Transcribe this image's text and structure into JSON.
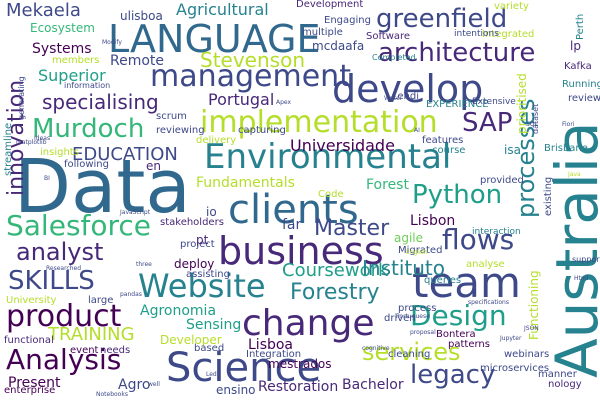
{
  "colors": {
    "background": "#ffffff",
    "palette": [
      "#440154",
      "#482878",
      "#3e4989",
      "#31688e",
      "#26828e",
      "#1f9e89",
      "#35b779",
      "#6ece58",
      "#b5de2b",
      "#fde725"
    ]
  },
  "words": [
    {
      "text": "Data",
      "color": "#31688e"
    },
    {
      "text": "Australia",
      "color": "#26828e"
    },
    {
      "text": "LANGUAGE",
      "color": "#31688e"
    },
    {
      "text": "management",
      "color": "#3e4989"
    },
    {
      "text": "develop",
      "color": "#3e4989"
    },
    {
      "text": "Environmental",
      "color": "#26828e"
    },
    {
      "text": "clients",
      "color": "#31688e"
    },
    {
      "text": "business",
      "color": "#482878"
    },
    {
      "text": "Science",
      "color": "#3e4989"
    },
    {
      "text": "team",
      "color": "#3e4989"
    },
    {
      "text": "Website",
      "color": "#26828e"
    },
    {
      "text": "change",
      "color": "#482878"
    },
    {
      "text": "architecture",
      "color": "#482878"
    },
    {
      "text": "greenfield",
      "color": "#3e4989"
    },
    {
      "text": "implementation",
      "color": "#b5de2b"
    },
    {
      "text": "Salesforce",
      "color": "#35b779"
    },
    {
      "text": "analyst",
      "color": "#482878"
    },
    {
      "text": "Python",
      "color": "#1f9e89"
    },
    {
      "text": "processes",
      "color": "#26828e"
    },
    {
      "text": "flows",
      "color": "#3e4989"
    },
    {
      "text": "product",
      "color": "#440154"
    },
    {
      "text": "Analysis",
      "color": "#440154"
    },
    {
      "text": "SKILLS",
      "color": "#3e4989"
    },
    {
      "text": "Design",
      "color": "#1f9e89"
    },
    {
      "text": "legacy",
      "color": "#3e4989"
    },
    {
      "text": "services",
      "color": "#b5de2b"
    },
    {
      "text": "Murdoch",
      "color": "#35b779"
    },
    {
      "text": "innovation",
      "color": "#482878"
    },
    {
      "text": "SAP",
      "color": "#482878"
    },
    {
      "text": "Stevenson",
      "color": "#b5de2b"
    },
    {
      "text": "specialising",
      "color": "#482878"
    },
    {
      "text": "Master",
      "color": "#3e4989"
    },
    {
      "text": "Forestry",
      "color": "#26828e"
    },
    {
      "text": "Coursework",
      "color": "#1f9e89"
    },
    {
      "text": "Instituto",
      "color": "#26828e"
    },
    {
      "text": "EDUCATION",
      "color": "#3e4989"
    },
    {
      "text": "Universidade",
      "color": "#440154"
    },
    {
      "text": "Mekaela",
      "color": "#3e4989"
    },
    {
      "text": "Agricultural",
      "color": "#26828e"
    },
    {
      "text": "Superior",
      "color": "#1f9e89"
    },
    {
      "text": "Systems",
      "color": "#440154"
    },
    {
      "text": "Remote",
      "color": "#3e4989"
    },
    {
      "text": "Portugal",
      "color": "#482878"
    },
    {
      "text": "TRAINING",
      "color": "#b5de2b"
    },
    {
      "text": "Agronomia",
      "color": "#1f9e89"
    },
    {
      "text": "Sensing",
      "color": "#1f9e89"
    },
    {
      "text": "Lisboa",
      "color": "#440154"
    },
    {
      "text": "Restoration",
      "color": "#482878"
    },
    {
      "text": "Bachelor",
      "color": "#482878"
    },
    {
      "text": "Fundamentals",
      "color": "#b5de2b"
    },
    {
      "text": "Forest",
      "color": "#35b779"
    },
    {
      "text": "Lisbon",
      "color": "#440154"
    },
    {
      "text": "Ecosystem",
      "color": "#35b779"
    },
    {
      "text": "Present",
      "color": "#440154"
    },
    {
      "text": "Agro",
      "color": "#3e4989"
    },
    {
      "text": "mestrados",
      "color": "#440154"
    },
    {
      "text": "ensino",
      "color": "#3e4989"
    },
    {
      "text": "ulisboa",
      "color": "#3e4989"
    },
    {
      "text": "mcdaafa",
      "color": "#3e4989"
    },
    {
      "text": "Development",
      "color": "#482878"
    },
    {
      "text": "Engaging",
      "color": "#3e4989"
    },
    {
      "text": "multiple",
      "color": "#3e4989"
    },
    {
      "text": "Software",
      "color": "#482878"
    },
    {
      "text": "Integrated",
      "color": "#b5de2b"
    },
    {
      "text": "Perth",
      "color": "#26828e"
    },
    {
      "text": "Kafka",
      "color": "#482878"
    },
    {
      "text": "lp",
      "color": "#482878"
    },
    {
      "text": "Lendi",
      "color": "#3e4989"
    },
    {
      "text": "EXPERIENCE",
      "color": "#26828e"
    },
    {
      "text": "Running",
      "color": "#26828e"
    },
    {
      "text": "review",
      "color": "#3e4989"
    },
    {
      "text": "Extensive",
      "color": "#3e4989"
    },
    {
      "text": "isa",
      "color": "#26828e"
    },
    {
      "text": "Brisbane",
      "color": "#26828e"
    },
    {
      "text": "existing",
      "color": "#3e4989"
    },
    {
      "text": "course",
      "color": "#26828e"
    },
    {
      "text": "features",
      "color": "#3e4989"
    },
    {
      "text": "Integration",
      "color": "#3e4989"
    },
    {
      "text": "process",
      "color": "#3e4989"
    },
    {
      "text": "Bontera",
      "color": "#440154"
    },
    {
      "text": "microservices",
      "color": "#3e4989"
    },
    {
      "text": "patterns",
      "color": "#440154"
    },
    {
      "text": "Developer",
      "color": "#b5de2b"
    },
    {
      "text": "webinars",
      "color": "#3e4989"
    },
    {
      "text": "manner",
      "color": "#3e4989"
    },
    {
      "text": "nology",
      "color": "#482878"
    },
    {
      "text": "Migrated",
      "color": "#3e4989"
    },
    {
      "text": "queries",
      "color": "#26828e"
    },
    {
      "text": "deploy",
      "color": "#440154"
    },
    {
      "text": "project",
      "color": "#3e4989"
    },
    {
      "text": "stakeholders",
      "color": "#482878"
    },
    {
      "text": "scrum",
      "color": "#3e4989"
    },
    {
      "text": "delivery",
      "color": "#b5de2b"
    },
    {
      "text": "reviewing",
      "color": "#3e4989"
    },
    {
      "text": "capturing",
      "color": "#3e4989"
    },
    {
      "text": "agile",
      "color": "#6ece58"
    },
    {
      "text": "far",
      "color": "#3e4989"
    },
    {
      "text": "pt",
      "color": "#482878"
    },
    {
      "text": "io",
      "color": "#3e4989"
    },
    {
      "text": "en",
      "color": "#482878"
    },
    {
      "text": "members",
      "color": "#b5de2b"
    },
    {
      "text": "following",
      "color": "#3e4989"
    },
    {
      "text": "insights",
      "color": "#b5de2b"
    },
    {
      "text": "University",
      "color": "#b5de2b"
    },
    {
      "text": "large",
      "color": "#3e4989"
    },
    {
      "text": "functional",
      "color": "#482878"
    },
    {
      "text": "event",
      "color": "#440154"
    },
    {
      "text": "needs",
      "color": "#482878"
    },
    {
      "text": "based",
      "color": "#3e4989"
    },
    {
      "text": "enterprise",
      "color": "#440154"
    },
    {
      "text": "assisting",
      "color": "#3e4989"
    },
    {
      "text": "driven",
      "color": "#3e4989"
    },
    {
      "text": "cleaning",
      "color": "#3e4989"
    },
    {
      "text": "prioritised",
      "color": "#b5de2b"
    },
    {
      "text": "Functioning",
      "color": "#b5de2b"
    },
    {
      "text": "provided",
      "color": "#3e4989"
    },
    {
      "text": "analyse",
      "color": "#b5de2b"
    },
    {
      "text": "interaction",
      "color": "#26828e"
    },
    {
      "text": "intentions",
      "color": "#3e4989"
    },
    {
      "text": "variety",
      "color": "#b5de2b"
    },
    {
      "text": "streamline",
      "color": "#26828e"
    },
    {
      "text": "generating",
      "color": "#3e4989"
    },
    {
      "text": "Completed",
      "color": "#26828e"
    },
    {
      "text": "Code",
      "color": "#b5de2b"
    },
    {
      "text": "support",
      "color": "#3e4989"
    },
    {
      "text": "dataset",
      "color": "#3e4989"
    },
    {
      "text": "information",
      "color": "#3e4989"
    },
    {
      "text": "English",
      "color": "#b5de2b"
    },
    {
      "text": "JavaScript",
      "color": "#3e4989"
    },
    {
      "text": "pandas",
      "color": "#3e4989"
    },
    {
      "text": "cognitive",
      "color": "#3e4989"
    },
    {
      "text": "proposal",
      "color": "#3e4989"
    },
    {
      "text": "Jupyter",
      "color": "#3e4989"
    },
    {
      "text": "specifications",
      "color": "#3e4989"
    },
    {
      "text": "Portuguese",
      "color": "#3e4989"
    },
    {
      "text": "three",
      "color": "#3e4989"
    },
    {
      "text": "Researched",
      "color": "#3e4989"
    },
    {
      "text": "Notebooks",
      "color": "#3e4989"
    },
    {
      "text": "Led",
      "color": "#3e4989"
    },
    {
      "text": "Apex",
      "color": "#3e4989"
    },
    {
      "text": "SQL",
      "color": "#3e4989"
    },
    {
      "text": "Html",
      "color": "#3e4989"
    },
    {
      "text": "JSON",
      "color": "#3e4989"
    },
    {
      "text": "Fiori",
      "color": "#3e4989"
    },
    {
      "text": "matplotlib",
      "color": "#3e4989"
    },
    {
      "text": "Ideas",
      "color": "#3e4989"
    },
    {
      "text": "Writer",
      "color": "#3e4989"
    },
    {
      "text": "AI",
      "color": "#3e4989"
    },
    {
      "text": "BI",
      "color": "#3e4989"
    },
    {
      "text": "well",
      "color": "#3e4989"
    },
    {
      "text": "Java",
      "color": "#b5de2b"
    },
    {
      "text": "Modify",
      "color": "#3e4989"
    }
  ]
}
